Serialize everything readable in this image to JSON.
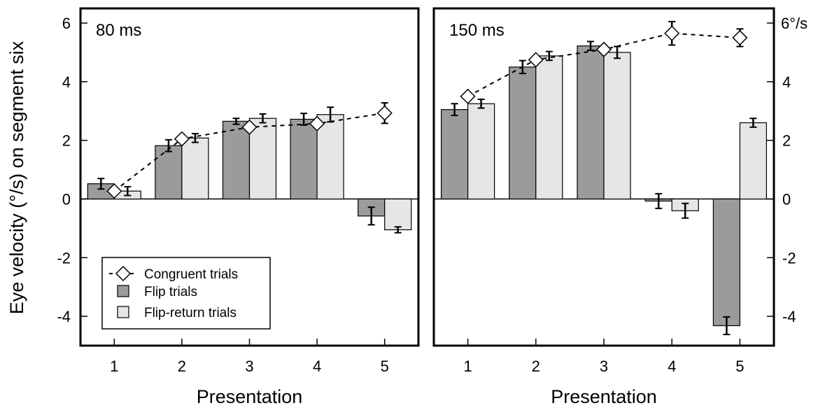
{
  "chart_data": {
    "type": "bar",
    "ylabel": "Eye velocity (°/s) on segment six",
    "y_unit_label": "6°/s",
    "ylim": [
      -5,
      6.5
    ],
    "yticks": [
      -4,
      -2,
      0,
      2,
      4,
      6
    ],
    "colors": {
      "flip": "#9b9b9b",
      "flip_return": "#e6e6e6",
      "congruent_marker": "#ffffff",
      "line": "#000000"
    },
    "legend": {
      "position": "bottom-left of left panel",
      "entries": [
        "Congruent trials",
        "Flip trials",
        "Flip-return trials"
      ]
    },
    "panels": [
      {
        "title": "80 ms",
        "xlabel": "Presentation",
        "categories": [
          "1",
          "2",
          "3",
          "4",
          "5"
        ],
        "series": [
          {
            "name": "Flip trials",
            "kind": "bar",
            "values": [
              0.52,
              1.82,
              2.65,
              2.72,
              -0.58
            ],
            "errors": [
              0.18,
              0.2,
              0.1,
              0.2,
              0.3
            ]
          },
          {
            "name": "Flip-return trials",
            "kind": "bar",
            "values": [
              0.27,
              2.08,
              2.75,
              2.88,
              -1.05
            ],
            "errors": [
              0.15,
              0.15,
              0.15,
              0.25,
              0.1
            ]
          },
          {
            "name": "Congruent trials",
            "kind": "line",
            "values": [
              0.27,
              2.05,
              2.45,
              2.57,
              2.93
            ],
            "errors": [
              0,
              0,
              0,
              0,
              0.35
            ]
          }
        ]
      },
      {
        "title": "150 ms",
        "xlabel": "Presentation",
        "categories": [
          "1",
          "2",
          "3",
          "4",
          "5"
        ],
        "series": [
          {
            "name": "Flip trials",
            "kind": "bar",
            "values": [
              3.05,
              4.5,
              5.22,
              -0.07,
              -4.32
            ],
            "errors": [
              0.2,
              0.22,
              0.15,
              0.25,
              0.3
            ]
          },
          {
            "name": "Flip-return trials",
            "kind": "bar",
            "values": [
              3.25,
              4.88,
              5.0,
              -0.4,
              2.6
            ],
            "errors": [
              0.15,
              0.15,
              0.2,
              0.25,
              0.15
            ]
          },
          {
            "name": "Congruent trials",
            "kind": "line",
            "values": [
              3.5,
              4.75,
              5.1,
              5.65,
              5.5
            ],
            "errors": [
              0,
              0,
              0,
              0.4,
              0.3
            ]
          }
        ]
      }
    ]
  }
}
